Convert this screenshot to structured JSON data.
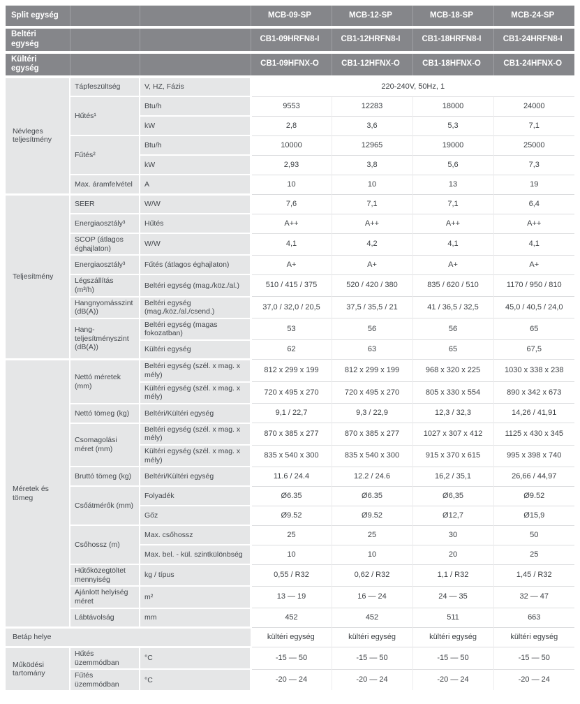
{
  "colors": {
    "header_bg": "#85868a",
    "label_bg": "#e5e6e7",
    "value_border": "#dcdddf"
  },
  "table": {
    "header_rows": [
      {
        "label": "Split egység",
        "values": [
          "MCB-09-SP",
          "MCB-12-SP",
          "MCB-18-SP",
          "MCB-24-SP"
        ]
      },
      {
        "label": "Beltéri egység",
        "values": [
          "CB1-09HRFN8-I",
          "CB1-12HRFN8-I",
          "CB1-18HRFN8-I",
          "CB1-24HRFN8-I"
        ]
      },
      {
        "label": "Kültéri egység",
        "values": [
          "CB1-09HFNX-O",
          "CB1-12HFNX-O",
          "CB1-18HFNX-O",
          "CB1-24HFNX-O"
        ]
      }
    ],
    "sections": [
      {
        "title": "Névleges teljesítmény",
        "rows": [
          {
            "label": "Tápfeszültség",
            "unit": "V, HZ, Fázis",
            "span_value": "220-240V, 50Hz, 1"
          },
          {
            "label": "Hűtés¹",
            "label_rowspan": 2,
            "unit": "Btu/h",
            "values": [
              "9553",
              "12283",
              "18000",
              "24000"
            ]
          },
          {
            "unit": "kW",
            "values": [
              "2,8",
              "3,6",
              "5,3",
              "7,1"
            ]
          },
          {
            "label": "Fűtés²",
            "label_rowspan": 2,
            "unit": "Btu/h",
            "values": [
              "10000",
              "12965",
              "19000",
              "25000"
            ]
          },
          {
            "unit": "kW",
            "values": [
              "2,93",
              "3,8",
              "5,6",
              "7,3"
            ]
          },
          {
            "label": "Max. áramfelvétel",
            "unit": "A",
            "values": [
              "10",
              "10",
              "13",
              "19"
            ]
          }
        ]
      },
      {
        "title": "Teljesítmény",
        "rows": [
          {
            "label": "SEER",
            "unit": "W/W",
            "values": [
              "7,6",
              "7,1",
              "7,1",
              "6,4"
            ]
          },
          {
            "label": "Energiaosztály³",
            "unit": "Hűtés",
            "values": [
              "A++",
              "A++",
              "A++",
              "A++"
            ]
          },
          {
            "label": "SCOP (átlagos éghajlaton)",
            "unit": "W/W",
            "values": [
              "4,1",
              "4,2",
              "4,1",
              "4,1"
            ]
          },
          {
            "label": "Energiaosztály³",
            "unit": "Fűtés (átlagos éghajlaton)",
            "values": [
              "A+",
              "A+",
              "A+",
              "A+"
            ]
          },
          {
            "label": "Légszállítás (m³/h)",
            "unit": "Beltéri egység (mag./köz./al.)",
            "values": [
              "510 / 415 / 375",
              "520 / 420 / 380",
              "835 / 620 / 510",
              "1170 / 950 / 810"
            ]
          },
          {
            "label": "Hangnyomásszint (dB(A))",
            "unit": "Beltéri egység (mag./köz./al./csend.)",
            "values": [
              "37,0 / 32,0 / 20,5",
              "37,5 / 35,5 / 21",
              "41 / 36,5 / 32,5",
              "45,0 / 40,5 / 24,0"
            ]
          },
          {
            "label": "Hang-teljesítményszint (dB(A))",
            "label_rowspan": 2,
            "unit": "Beltéri egység (magas fokozatban)",
            "values": [
              "53",
              "56",
              "56",
              "65"
            ]
          },
          {
            "unit": "Kültéri egység",
            "values": [
              "62",
              "63",
              "65",
              "67,5"
            ]
          }
        ]
      },
      {
        "title": "Méretek és tömeg",
        "rows": [
          {
            "label": "Nettó méretek (mm)",
            "label_rowspan": 2,
            "unit": "Beltéri egység (szél. x mag. x mély)",
            "values": [
              "812 x 299 x 199",
              "812 x 299 x 199",
              "968 x 320 x 225",
              "1030 x 338 x 238"
            ]
          },
          {
            "unit": "Kültéri egység (szél. x mag. x mély)",
            "values": [
              "720 x 495 x 270",
              "720 x 495 x 270",
              "805 x 330 x 554",
              "890 x 342 x 673"
            ]
          },
          {
            "label": "Nettó tömeg (kg)",
            "unit": "Beltéri/Kültéri egység",
            "values": [
              "9,1 / 22,7",
              "9,3 / 22,9",
              "12,3 / 32,3",
              "14,26 / 41,91"
            ]
          },
          {
            "label": "Csomagolási méret (mm)",
            "label_rowspan": 2,
            "unit": "Beltéri egység (szél. x mag. x mély)",
            "values": [
              "870 x 385 x 277",
              "870 x 385 x 277",
              "1027 x 307 x 412",
              "1125 x 430 x 345"
            ]
          },
          {
            "unit": "Kültéri egység (szél. x mag. x mély)",
            "values": [
              "835 x 540 x 300",
              "835 x 540 x 300",
              "915 x 370 x 615",
              "995 x 398 x 740"
            ]
          },
          {
            "label": "Bruttó tömeg (kg)",
            "unit": "Beltéri/Kültéri egység",
            "values": [
              "11.6 / 24.4",
              "12.2 / 24.6",
              "16,2 / 35,1",
              "26,66 / 44,97"
            ]
          },
          {
            "label": "Csőátmérők (mm)",
            "label_rowspan": 2,
            "unit": "Folyadék",
            "values": [
              "Ø6.35",
              "Ø6.35",
              "Ø6,35",
              "Ø9.52"
            ]
          },
          {
            "unit": "Gőz",
            "values": [
              "Ø9.52",
              "Ø9.52",
              "Ø12,7",
              "Ø15,9"
            ]
          },
          {
            "label": "Csőhossz (m)",
            "label_rowspan": 2,
            "unit": "Max. csőhossz",
            "values": [
              "25",
              "25",
              "30",
              "50"
            ]
          },
          {
            "unit": "Max. bel. - kül. szintkülönbség",
            "values": [
              "10",
              "10",
              "20",
              "25"
            ]
          },
          {
            "label": "Hűtőközegtöltet mennyiség",
            "unit": "kg / típus",
            "values": [
              "0,55 / R32",
              "0,62 / R32",
              "1,1 / R32",
              "1,45 / R32"
            ]
          },
          {
            "label": "Ajánlott helyiség méret",
            "unit": "m²",
            "values": [
              "13 — 19",
              "16 — 24",
              "24 — 35",
              "32 — 47"
            ]
          },
          {
            "label": "Lábtávolság",
            "unit": "mm",
            "values": [
              "452",
              "452",
              "511",
              "663"
            ]
          }
        ]
      },
      {
        "title": "Betáp helye",
        "left_full": true,
        "rows": [
          {
            "values": [
              "kültéri egység",
              "kültéri egység",
              "kültéri egység",
              "kültéri egység"
            ]
          }
        ]
      },
      {
        "title": "Működési tartomány",
        "rows": [
          {
            "label": "Hűtés üzemmódban",
            "unit": "°C",
            "values": [
              "-15 — 50",
              "-15 — 50",
              "-15 — 50",
              "-15 — 50"
            ]
          },
          {
            "label": "Fűtés üzemmódban",
            "unit": "°C",
            "values": [
              "-20 — 24",
              "-20 — 24",
              "-20 — 24",
              "-20 — 24"
            ]
          }
        ]
      }
    ]
  }
}
